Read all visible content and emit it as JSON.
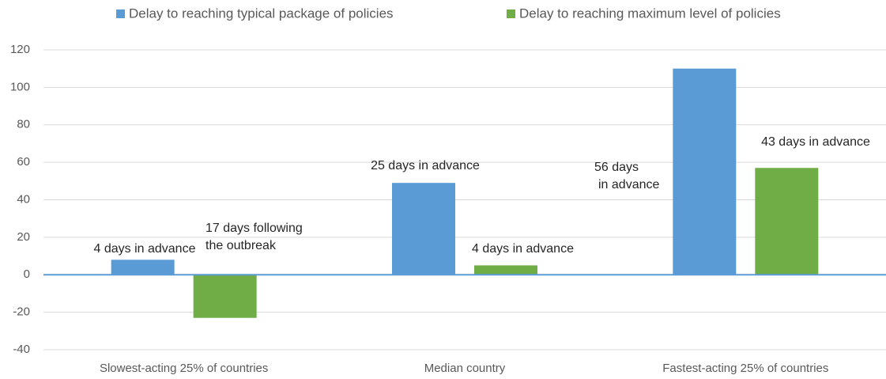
{
  "chart_data": {
    "type": "bar",
    "categories": [
      "Slowest-acting 25% of countries",
      "Median country",
      "Fastest-acting 25% of countries"
    ],
    "series": [
      {
        "name": "Delay to reaching typical package of policies",
        "color": "#5b9bd5",
        "values": [
          8,
          49,
          110
        ],
        "annotations": [
          [
            "4 days in advance"
          ],
          [
            "25 days in advance"
          ],
          [
            "56 days",
            "in advance"
          ]
        ]
      },
      {
        "name": "Delay to reaching maximum level of policies",
        "color": "#70ad47",
        "values": [
          -23,
          5,
          57
        ],
        "annotations": [
          [
            "17 days following",
            "the outbreak"
          ],
          [
            "4 days in advance"
          ],
          [
            "43 days in advance"
          ]
        ]
      }
    ],
    "ylim": [
      -40,
      120
    ],
    "yticks": [
      -40,
      -20,
      0,
      20,
      40,
      60,
      80,
      100,
      120
    ],
    "grid": true,
    "legend": "top"
  }
}
